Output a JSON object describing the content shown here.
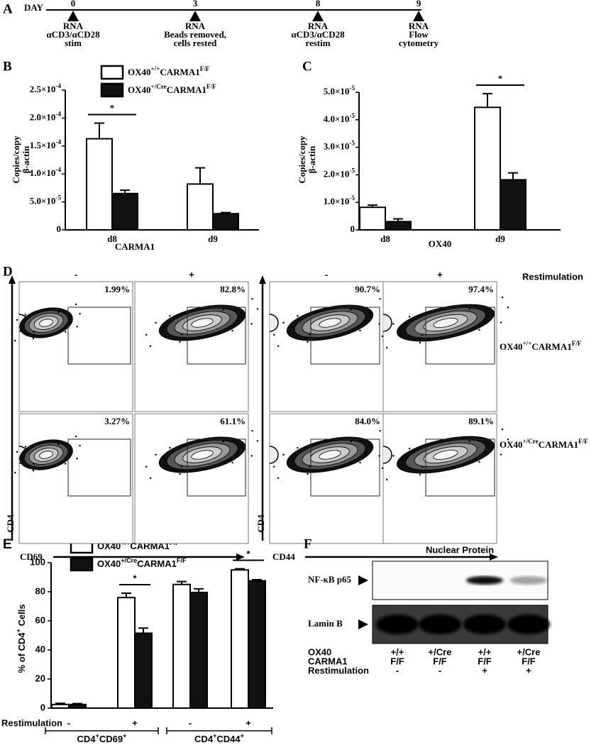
{
  "panel_a": {
    "label": "A",
    "title": "DAY",
    "days": [
      {
        "day": 0,
        "text": [
          "RNA",
          "αCD3/αCD28",
          "stim"
        ]
      },
      {
        "day": 3,
        "text": [
          "RNA",
          "Beads removed,",
          "cells rested"
        ]
      },
      {
        "day": 8,
        "text": [
          "RNA",
          "αCD3/αCD28",
          "restim"
        ]
      },
      {
        "day": 9,
        "text": [
          "RNA",
          "Flow",
          "cytometry"
        ]
      }
    ]
  },
  "chart_data": [
    {
      "type": "bar",
      "label": "B",
      "ylabel": [
        "Copies/copy",
        "β-actin"
      ],
      "xlabel": "CARMA1",
      "categories": [
        "d8",
        "d9"
      ],
      "ylim": [
        0,
        0.00025
      ],
      "yticks": [
        0,
        {
          "value": 5e-05,
          "label": [
            "5.0×10",
            "-5"
          ]
        },
        {
          "value": 0.0001,
          "label": [
            "1.0×10",
            "-4"
          ]
        },
        {
          "value": 0.00015,
          "label": [
            "1.5×10",
            "-4"
          ]
        },
        {
          "value": 0.0002,
          "label": [
            "2.0×10",
            "-4"
          ]
        },
        {
          "value": 0.00025,
          "label": [
            "2.5×10",
            "-4"
          ]
        }
      ],
      "series": [
        {
          "name": [
            "OX40",
            "+/+",
            "CARMA1",
            "F/F"
          ],
          "color": "#ffffff",
          "values": [
            0.000163,
            8.2e-05
          ],
          "errors": [
            2.8e-05,
            2.9e-05
          ]
        },
        {
          "name": [
            "OX40",
            "+/Cre",
            "CARMA1",
            "F/F"
          ],
          "color": "#111111",
          "values": [
            6.5e-05,
            2.9e-05
          ],
          "errors": [
            6e-06,
            2e-06
          ]
        }
      ],
      "annotations": [
        "*",
        null
      ]
    },
    {
      "type": "bar",
      "label": "C",
      "ylabel": [
        "Copies/copy",
        "β-actin"
      ],
      "xlabel": "OX40",
      "categories": [
        "d8",
        "d9"
      ],
      "ylim": [
        0,
        5e-05
      ],
      "yticks": [
        0,
        {
          "value": 1e-05,
          "label": [
            "1.0×10",
            "-5"
          ]
        },
        {
          "value": 2e-05,
          "label": [
            "2.0×10",
            "-5"
          ]
        },
        {
          "value": 3e-05,
          "label": [
            "3.0×10",
            "-5"
          ]
        },
        {
          "value": 4e-05,
          "label": [
            "4.0×10",
            "-5"
          ]
        },
        {
          "value": 5e-05,
          "label": [
            "5.0×10",
            "-5"
          ]
        }
      ],
      "series": [
        {
          "color": "#ffffff",
          "values": [
            8.2e-06,
            4.45e-05
          ],
          "errors": [
            8e-07,
            5e-06
          ]
        },
        {
          "color": "#111111",
          "values": [
            3e-06,
            1.82e-05
          ],
          "errors": [
            1e-06,
            2.5e-06
          ]
        }
      ],
      "annotations": [
        null,
        "*"
      ]
    },
    {
      "type": "bar",
      "label": "E",
      "ylabel": [
        "% of CD4",
        "+",
        " Cells"
      ],
      "xlabel": "Restimulation",
      "categories": [
        "-",
        "+",
        "-",
        "+"
      ],
      "groups": [
        [
          "CD4",
          "+",
          "CD69",
          "+"
        ],
        [
          "CD4",
          "+",
          "CD44",
          "+"
        ]
      ],
      "ylim": [
        0,
        100
      ],
      "yticks": [
        0,
        20,
        40,
        60,
        80,
        100
      ],
      "series": [
        {
          "name": [
            "OX40",
            "+/+",
            "CARMA1",
            "F/F"
          ],
          "color": "#ffffff",
          "values": [
            2.5,
            76,
            85,
            95
          ],
          "errors": [
            0.8,
            3,
            2,
            0.8
          ]
        },
        {
          "name": [
            "OX40",
            "+/Cre",
            "CARMA1",
            "F/F"
          ],
          "color": "#111111",
          "values": [
            2.5,
            51.5,
            79.5,
            87.5
          ],
          "errors": [
            0.6,
            3.5,
            2.5,
            0.8
          ]
        }
      ],
      "annotations": [
        null,
        "*",
        null,
        "*"
      ]
    }
  ],
  "panel_d": {
    "label": "D",
    "restimulation": "Restimulation",
    "groups": [
      {
        "y_label": "CD4",
        "x_label": "CD69",
        "columns": [
          "-",
          "+"
        ],
        "percentages": [
          [
            "1.99%",
            "82.8%"
          ],
          [
            "3.27%",
            "61.1%"
          ]
        ]
      },
      {
        "y_label": "CD4",
        "x_label": "CD44",
        "columns": [
          "-",
          "+"
        ],
        "percentages": [
          [
            "90.7%",
            "97.4%"
          ],
          [
            "84.0%",
            "89.1%"
          ]
        ]
      }
    ],
    "rows": [
      [
        "OX40",
        "+/+",
        "CARMA1",
        "F/F"
      ],
      [
        "OX40",
        "+/Cre",
        "CARMA1",
        "F/F"
      ]
    ]
  },
  "panel_f": {
    "label": "F",
    "title": "Nuclear Protein",
    "blots": [
      "NF-κB p65",
      "Lamin B"
    ],
    "table": {
      "rows": [
        {
          "label": "OX40",
          "cells": [
            "+/+",
            "+/Cre",
            "+/+",
            "+/Cre"
          ]
        },
        {
          "label": "CARMA1",
          "cells": [
            "F/F",
            "F/F",
            "F/F",
            "F/F"
          ]
        },
        {
          "label": "Restimulation",
          "cells": [
            "-",
            "-",
            "+",
            "+"
          ]
        }
      ]
    }
  }
}
